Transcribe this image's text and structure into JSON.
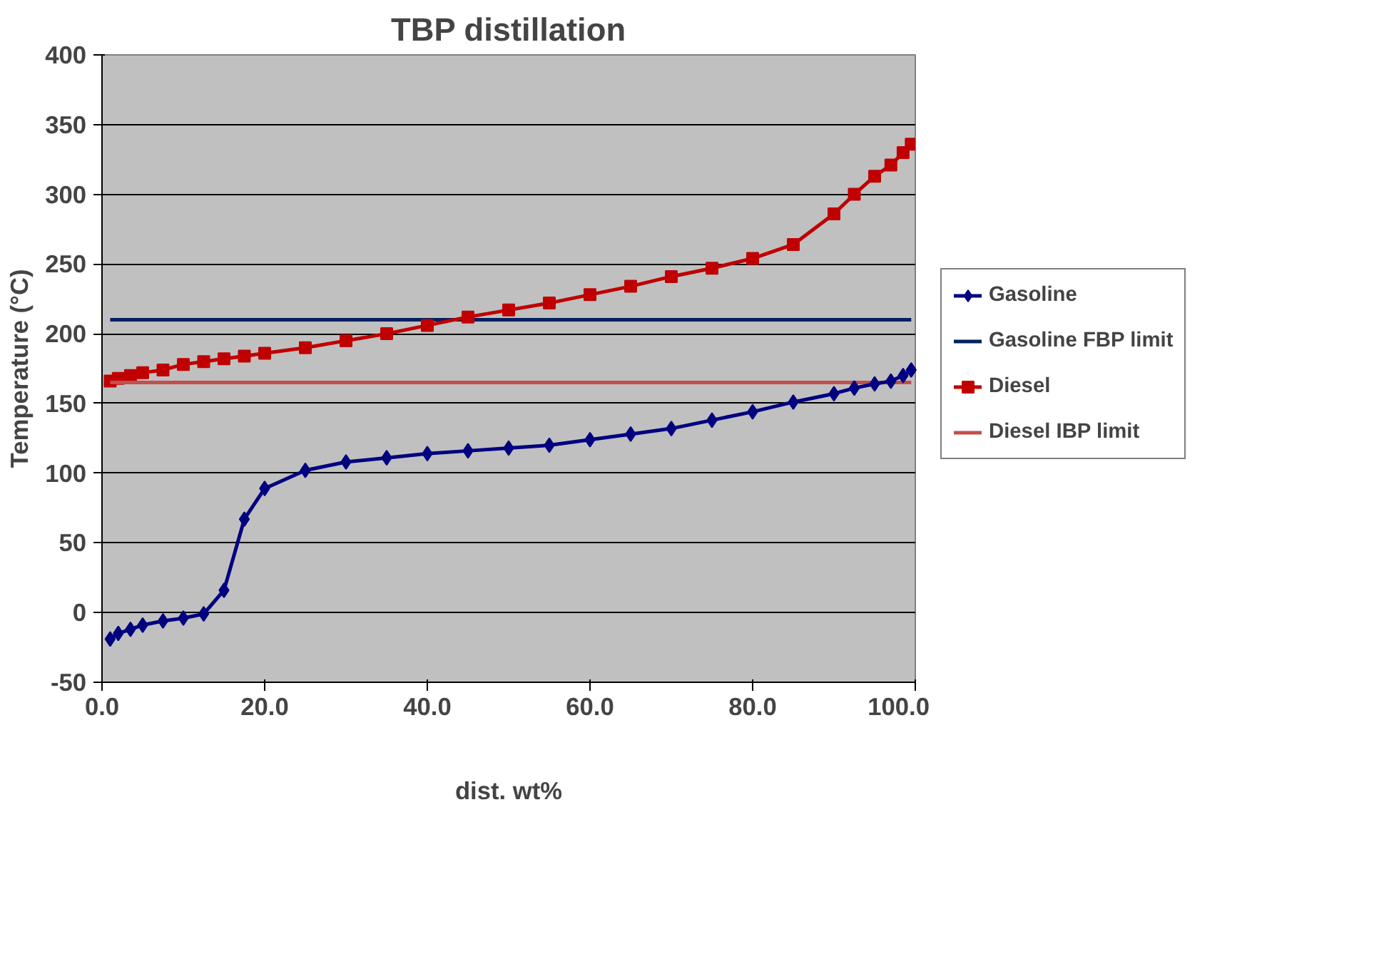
{
  "chart_data": {
    "type": "line",
    "title": "TBP distillation",
    "xlabel": "dist. wt%",
    "ylabel": "Temperature (°C)",
    "xlim": [
      0,
      100
    ],
    "ylim": [
      -50,
      400
    ],
    "xticks": [
      {
        "value": 0,
        "label": "0.0"
      },
      {
        "value": 20,
        "label": "20.0"
      },
      {
        "value": 40,
        "label": "40.0"
      },
      {
        "value": 60,
        "label": "60.0"
      },
      {
        "value": 80,
        "label": "80.0"
      },
      {
        "value": 100,
        "label": "100.0"
      }
    ],
    "yticks": [
      -50,
      0,
      50,
      100,
      150,
      200,
      250,
      300,
      350,
      400
    ],
    "grid": "y",
    "legend": "right",
    "line_style": "solid",
    "series": [
      {
        "name": "Gasoline",
        "color": "#000080",
        "marker": "diamond",
        "x": [
          1,
          2,
          3.5,
          5,
          7.5,
          10,
          12.5,
          15,
          17.5,
          20,
          25,
          30,
          35,
          40,
          45,
          50,
          55,
          60,
          65,
          70,
          75,
          80,
          85,
          90,
          92.5,
          95,
          97,
          98.5,
          99.5
        ],
        "values": [
          -19,
          -15,
          -12,
          -9,
          -6,
          -4,
          -1,
          16,
          67,
          89,
          102,
          108,
          111,
          114,
          116,
          118,
          120,
          124,
          128,
          132,
          138,
          144,
          151,
          157,
          161,
          164,
          166,
          170,
          174
        ]
      },
      {
        "name": "Gasoline FBP limit",
        "color": "#002060",
        "marker": "none",
        "x": [
          1,
          99.5
        ],
        "values": [
          210,
          210
        ]
      },
      {
        "name": "Diesel",
        "color": "#c00000",
        "marker": "square",
        "x": [
          1,
          2,
          3.5,
          5,
          7.5,
          10,
          12.5,
          15,
          17.5,
          20,
          25,
          30,
          35,
          40,
          45,
          50,
          55,
          60,
          65,
          70,
          75,
          80,
          85,
          90,
          92.5,
          95,
          97,
          98.5,
          99.5
        ],
        "values": [
          166,
          168,
          170,
          172,
          174,
          178,
          180,
          182,
          184,
          186,
          190,
          195,
          200,
          206,
          212,
          217,
          222,
          228,
          234,
          241,
          247,
          254,
          264,
          286,
          300,
          313,
          321,
          330,
          336
        ]
      },
      {
        "name": "Diesel IBP limit",
        "color": "#c0504d",
        "marker": "none",
        "x": [
          1,
          99.5
        ],
        "values": [
          165,
          165
        ]
      }
    ]
  }
}
